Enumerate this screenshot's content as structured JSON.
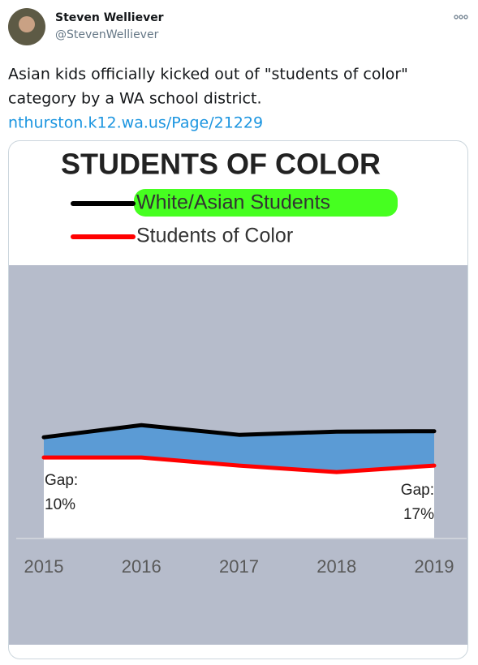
{
  "tweet": {
    "author_name": "Steven Welliever",
    "author_handle": "@StevenWelliever",
    "text_lines": [
      "Asian kids officially kicked out of \"students of color\"",
      "category by a WA school district."
    ],
    "link": "nthurston.k12.wa.us/Page/21229"
  },
  "chart_data": {
    "type": "area",
    "title": "STUDENTS OF COLOR",
    "categories": [
      "2015",
      "2016",
      "2017",
      "2018",
      "2019"
    ],
    "series": [
      {
        "name": "White/Asian Students",
        "color": "#000000",
        "highlight": "#3cff14",
        "values": [
          50,
          56,
          51.2,
          52.8,
          53
        ]
      },
      {
        "name": "Students of Color",
        "color": "#ff0000",
        "values": [
          40,
          40,
          36,
          32.8,
          36
        ]
      }
    ],
    "gap_color": "#5b9bd5",
    "background": "#b6bccb",
    "ylim": [
      0,
      135
    ],
    "annotations": [
      [
        "Gap:",
        "10%"
      ],
      [
        "Gap:",
        "17%"
      ]
    ]
  }
}
